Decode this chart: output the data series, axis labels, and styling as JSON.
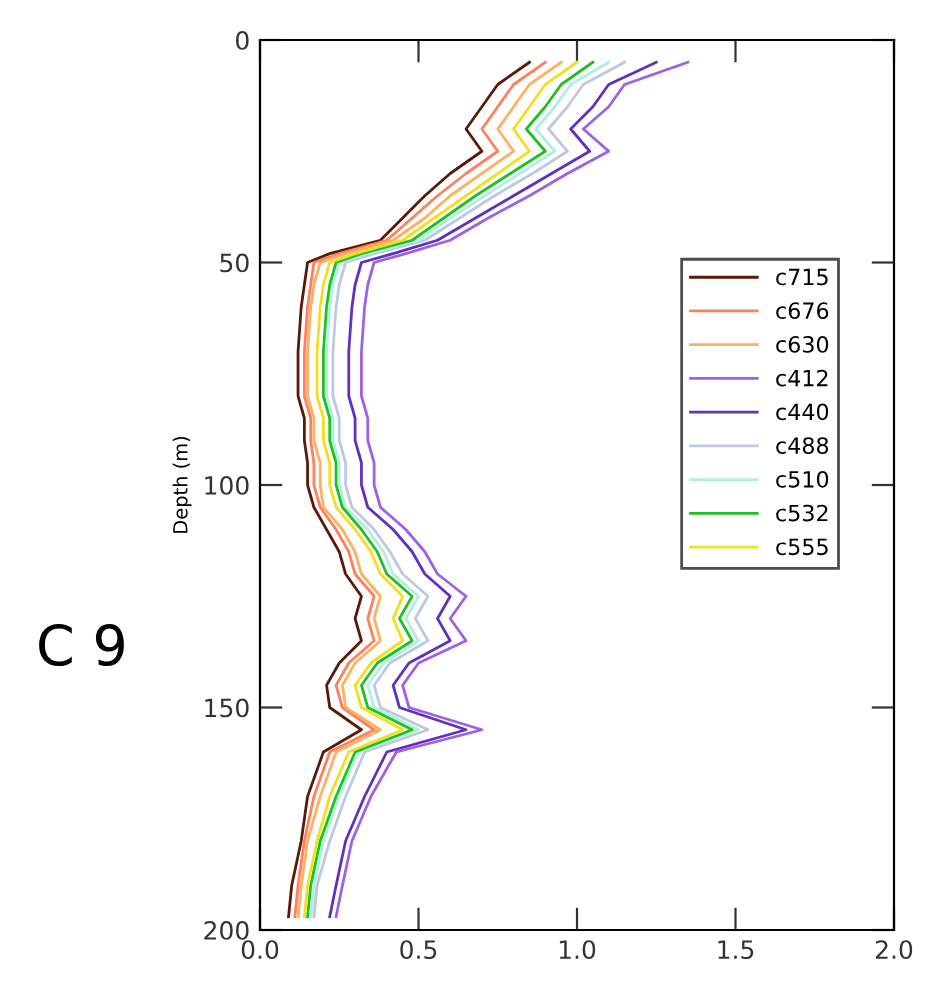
{
  "chart_data": {
    "type": "line",
    "ylabel": "Depth (m)",
    "annotations": [
      "C 9"
    ],
    "xlim": [
      0.0,
      2.0
    ],
    "xticks": [
      {
        "value": 0,
        "label": "0.0"
      },
      {
        "value": 0.5,
        "label": "0.5"
      },
      {
        "value": 1.0,
        "label": "1.0"
      },
      {
        "value": 1.5,
        "label": "1.5"
      },
      {
        "value": 2.0,
        "label": "2.0"
      }
    ],
    "ylim": [
      200,
      0
    ],
    "yticks": [
      0,
      50,
      100,
      150,
      200
    ],
    "legend": "right",
    "grid": false,
    "marker": "none",
    "line_style": "solid",
    "series": [
      {
        "name": "c715",
        "color": "#5a1a0a",
        "x": [
          0.85,
          0.75,
          0.7,
          0.65,
          0.7,
          0.6,
          0.52,
          0.45,
          0.38,
          0.22,
          0.15,
          0.14,
          0.13,
          0.12,
          0.12,
          0.14,
          0.14,
          0.15,
          0.15,
          0.17,
          0.21,
          0.25,
          0.27,
          0.32,
          0.3,
          0.32,
          0.25,
          0.21,
          0.22,
          0.32,
          0.2,
          0.15,
          0.13,
          0.1,
          0.09
        ],
        "values": [
          5,
          10,
          15,
          20,
          25,
          30,
          35,
          40,
          45,
          48,
          50,
          55,
          60,
          70,
          80,
          85,
          90,
          95,
          100,
          105,
          110,
          115,
          120,
          125,
          130,
          135,
          140,
          145,
          150,
          155,
          160,
          170,
          180,
          190,
          197
        ]
      },
      {
        "name": "c676",
        "color": "#ff8060",
        "x": [
          0.9,
          0.8,
          0.75,
          0.7,
          0.75,
          0.65,
          0.56,
          0.48,
          0.4,
          0.25,
          0.17,
          0.16,
          0.15,
          0.14,
          0.14,
          0.16,
          0.16,
          0.17,
          0.17,
          0.19,
          0.24,
          0.28,
          0.3,
          0.36,
          0.34,
          0.36,
          0.28,
          0.24,
          0.26,
          0.36,
          0.22,
          0.17,
          0.14,
          0.12,
          0.11
        ],
        "values": [
          5,
          10,
          15,
          20,
          25,
          30,
          35,
          40,
          45,
          48,
          50,
          55,
          60,
          70,
          80,
          85,
          90,
          95,
          100,
          105,
          110,
          115,
          120,
          125,
          130,
          135,
          140,
          145,
          150,
          155,
          160,
          170,
          180,
          190,
          197
        ]
      },
      {
        "name": "c630",
        "color": "#ffb060",
        "x": [
          0.95,
          0.85,
          0.8,
          0.75,
          0.8,
          0.7,
          0.6,
          0.52,
          0.42,
          0.27,
          0.19,
          0.17,
          0.16,
          0.15,
          0.15,
          0.17,
          0.17,
          0.19,
          0.19,
          0.2,
          0.26,
          0.3,
          0.32,
          0.38,
          0.36,
          0.38,
          0.3,
          0.26,
          0.27,
          0.38,
          0.24,
          0.19,
          0.15,
          0.13,
          0.12
        ],
        "values": [
          5,
          10,
          15,
          20,
          25,
          30,
          35,
          40,
          45,
          48,
          50,
          55,
          60,
          70,
          80,
          85,
          90,
          95,
          100,
          105,
          110,
          115,
          120,
          125,
          130,
          135,
          140,
          145,
          150,
          155,
          160,
          170,
          180,
          190,
          197
        ]
      },
      {
        "name": "c412",
        "color": "#a060e0",
        "x": [
          1.35,
          1.15,
          1.1,
          1.02,
          1.1,
          0.97,
          0.85,
          0.72,
          0.6,
          0.46,
          0.36,
          0.34,
          0.33,
          0.32,
          0.32,
          0.34,
          0.34,
          0.36,
          0.36,
          0.38,
          0.46,
          0.52,
          0.56,
          0.65,
          0.6,
          0.65,
          0.5,
          0.45,
          0.47,
          0.7,
          0.43,
          0.35,
          0.29,
          0.26,
          0.24
        ],
        "values": [
          5,
          10,
          15,
          20,
          25,
          30,
          35,
          40,
          45,
          48,
          50,
          55,
          60,
          70,
          80,
          85,
          90,
          95,
          100,
          105,
          110,
          115,
          120,
          125,
          130,
          135,
          140,
          145,
          150,
          155,
          160,
          170,
          180,
          190,
          197
        ]
      },
      {
        "name": "c440",
        "color": "#6030c0",
        "x": [
          1.25,
          1.1,
          1.05,
          0.98,
          1.04,
          0.92,
          0.8,
          0.68,
          0.56,
          0.42,
          0.32,
          0.3,
          0.29,
          0.28,
          0.28,
          0.3,
          0.3,
          0.32,
          0.32,
          0.34,
          0.42,
          0.48,
          0.52,
          0.6,
          0.56,
          0.6,
          0.47,
          0.42,
          0.44,
          0.65,
          0.4,
          0.33,
          0.27,
          0.24,
          0.22
        ],
        "values": [
          5,
          10,
          15,
          20,
          25,
          30,
          35,
          40,
          45,
          48,
          50,
          55,
          60,
          70,
          80,
          85,
          90,
          95,
          100,
          105,
          110,
          115,
          120,
          125,
          130,
          135,
          140,
          145,
          150,
          155,
          160,
          170,
          180,
          190,
          197
        ]
      },
      {
        "name": "c488",
        "color": "#c0c8e0",
        "x": [
          1.15,
          1.02,
          0.97,
          0.91,
          0.97,
          0.86,
          0.74,
          0.63,
          0.52,
          0.36,
          0.27,
          0.25,
          0.24,
          0.23,
          0.23,
          0.25,
          0.25,
          0.27,
          0.27,
          0.29,
          0.36,
          0.41,
          0.45,
          0.53,
          0.49,
          0.53,
          0.41,
          0.36,
          0.38,
          0.53,
          0.33,
          0.27,
          0.22,
          0.18,
          0.17
        ],
        "values": [
          5,
          10,
          15,
          20,
          25,
          30,
          35,
          40,
          45,
          48,
          50,
          55,
          60,
          70,
          80,
          85,
          90,
          95,
          100,
          105,
          110,
          115,
          120,
          125,
          130,
          135,
          140,
          145,
          150,
          155,
          160,
          170,
          180,
          190,
          197
        ]
      },
      {
        "name": "c510",
        "color": "#b0f0e0",
        "x": [
          1.1,
          0.98,
          0.93,
          0.87,
          0.93,
          0.82,
          0.71,
          0.6,
          0.5,
          0.34,
          0.25,
          0.23,
          0.22,
          0.21,
          0.21,
          0.23,
          0.23,
          0.25,
          0.25,
          0.27,
          0.34,
          0.39,
          0.42,
          0.5,
          0.46,
          0.5,
          0.39,
          0.34,
          0.36,
          0.5,
          0.31,
          0.25,
          0.2,
          0.17,
          0.16
        ],
        "values": [
          5,
          10,
          15,
          20,
          25,
          30,
          35,
          40,
          45,
          48,
          50,
          55,
          60,
          70,
          80,
          85,
          90,
          95,
          100,
          105,
          110,
          115,
          120,
          125,
          130,
          135,
          140,
          145,
          150,
          155,
          160,
          170,
          180,
          190,
          197
        ]
      },
      {
        "name": "c532",
        "color": "#20c020",
        "x": [
          1.05,
          0.95,
          0.9,
          0.84,
          0.9,
          0.79,
          0.68,
          0.58,
          0.48,
          0.32,
          0.24,
          0.22,
          0.21,
          0.2,
          0.2,
          0.22,
          0.22,
          0.24,
          0.24,
          0.26,
          0.32,
          0.37,
          0.4,
          0.48,
          0.44,
          0.48,
          0.37,
          0.32,
          0.34,
          0.48,
          0.3,
          0.24,
          0.19,
          0.16,
          0.15
        ],
        "values": [
          5,
          10,
          15,
          20,
          25,
          30,
          35,
          40,
          45,
          48,
          50,
          55,
          60,
          70,
          80,
          85,
          90,
          95,
          100,
          105,
          110,
          115,
          120,
          125,
          130,
          135,
          140,
          145,
          150,
          155,
          160,
          170,
          180,
          190,
          197
        ]
      },
      {
        "name": "c555",
        "color": "#f0e020",
        "x": [
          1.0,
          0.9,
          0.85,
          0.8,
          0.85,
          0.75,
          0.65,
          0.55,
          0.45,
          0.3,
          0.22,
          0.2,
          0.19,
          0.18,
          0.18,
          0.2,
          0.2,
          0.22,
          0.22,
          0.24,
          0.3,
          0.35,
          0.38,
          0.45,
          0.42,
          0.45,
          0.35,
          0.3,
          0.32,
          0.45,
          0.28,
          0.22,
          0.18,
          0.15,
          0.14
        ],
        "values": [
          5,
          10,
          15,
          20,
          25,
          30,
          35,
          40,
          45,
          48,
          50,
          55,
          60,
          70,
          80,
          85,
          90,
          95,
          100,
          105,
          110,
          115,
          120,
          125,
          130,
          135,
          140,
          145,
          150,
          155,
          160,
          170,
          180,
          190,
          197
        ]
      }
    ]
  }
}
